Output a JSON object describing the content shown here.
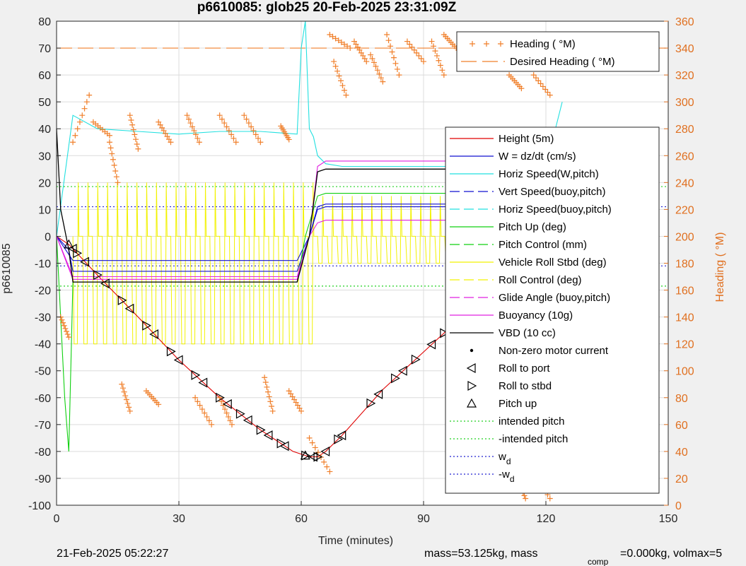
{
  "title": "p6610085: glob25 20-Feb-2025 23:31:09Z",
  "footer": {
    "timestamp": "21-Feb-2025 05:22:27",
    "mass_text": "mass=53.125kg, mass",
    "comp_sub": "comp",
    "comp_text": "=0.000kg, volmax=5"
  },
  "chart_data": {
    "type": "line",
    "title": "p6610085: glob25 20-Feb-2025 23:31:09Z",
    "xlabel": "Time (minutes)",
    "ylabel": "p6610085",
    "ylabel_right": "Heading (  °M)",
    "xlim": [
      0,
      150
    ],
    "ylim": [
      -100,
      80
    ],
    "ylim_right": [
      0,
      360
    ],
    "x_ticks": [
      0,
      30,
      60,
      90,
      120,
      150
    ],
    "y_ticks": [
      -100,
      -90,
      -80,
      -70,
      -60,
      -50,
      -40,
      -30,
      -20,
      -10,
      0,
      10,
      20,
      30,
      40,
      50,
      60,
      70,
      80
    ],
    "y_ticks_right": [
      0,
      20,
      40,
      60,
      80,
      100,
      120,
      140,
      160,
      180,
      200,
      220,
      240,
      260,
      280,
      300,
      320,
      340,
      360
    ],
    "grid": true,
    "colors": {
      "heading": "#f07f2a",
      "height": "#e00000",
      "w": "#1010d0",
      "horiz_speed": "#22e0e0",
      "pitch": "#10d010",
      "roll": "#f2f200",
      "glide": "#e020e0",
      "vbd": "#000000",
      "intended": "#20d020",
      "wd": "#2020d0"
    },
    "legend_heading": {
      "placement": "top-right",
      "entries": [
        "Heading (  °M)",
        "Desired Heading (    °M)"
      ]
    },
    "legend_main": {
      "placement": "right",
      "entries": [
        {
          "label": "Height (5m)"
        },
        {
          "label": "W = dz/dt (cm/s)"
        },
        {
          "label": "Horiz Speed(W,pitch)"
        },
        {
          "label": "Vert Speed(buoy,pitch)"
        },
        {
          "label": "Horiz Speed(buoy,pitch)"
        },
        {
          "label": "Pitch Up (deg)"
        },
        {
          "label": "Pitch Control (mm)"
        },
        {
          "label": "Vehicle Roll Stbd (deg)"
        },
        {
          "label": "Roll Control (deg)"
        },
        {
          "label": "Glide Angle (buoy,pitch)"
        },
        {
          "label": "Buoyancy (10g)"
        },
        {
          "label": "VBD (10 cc)"
        },
        {
          "label": "Non-zero motor current"
        },
        {
          "label": "Roll to port"
        },
        {
          "label": "Roll to stbd"
        },
        {
          "label": "Pitch up"
        },
        {
          "label": "intended pitch"
        },
        {
          "label": "-intended pitch"
        },
        {
          "label": "w",
          "sub": "d"
        },
        {
          "label": "-w",
          "sub": "d"
        }
      ]
    },
    "desired_heading": 340,
    "intended_pitch": [
      18.5,
      -18.5
    ],
    "w_d": [
      11,
      -11
    ],
    "series": [
      {
        "name": "Height (5m)",
        "key": "height",
        "x": [
          0,
          3,
          11,
          20,
          30,
          40,
          50,
          58,
          62,
          64,
          66,
          70,
          80,
          90,
          100,
          110,
          120,
          124
        ],
        "y": [
          0,
          -3,
          -16,
          -30,
          -46,
          -60,
          -72,
          -80,
          -82,
          -82,
          -80,
          -74,
          -57,
          -43,
          -29,
          -17,
          -4,
          0
        ]
      },
      {
        "name": "W = dz/dt (cm/s)",
        "key": "w",
        "x": [
          0,
          3,
          4,
          20,
          40,
          59,
          62,
          64,
          66,
          80,
          100,
          124
        ],
        "y": [
          0,
          -5,
          -13,
          -13,
          -13,
          -13,
          0,
          10,
          11,
          11,
          11,
          11
        ]
      },
      {
        "name": "Horiz Speed(W,pitch)",
        "key": "horiz_speed",
        "x": [
          0,
          4,
          10,
          20,
          30,
          40,
          50,
          59,
          60,
          61,
          62,
          63,
          64,
          66,
          70,
          80,
          90,
          100,
          110,
          120,
          124
        ],
        "y": [
          0,
          45,
          40,
          39,
          38,
          39,
          39,
          38,
          70,
          80,
          40,
          37,
          30,
          27,
          26,
          26,
          26,
          26,
          26,
          26,
          50
        ]
      },
      {
        "name": "Vert Speed(buoy,pitch)",
        "key": "w",
        "x": [
          0,
          4,
          20,
          40,
          59,
          62,
          64,
          66,
          80,
          100,
          124
        ],
        "y": [
          0,
          -9,
          -9,
          -9,
          -9,
          0,
          11,
          12,
          12,
          12,
          12
        ]
      },
      {
        "name": "Pitch Up (deg)",
        "key": "pitch",
        "x": [
          0,
          2,
          3,
          4,
          20,
          40,
          59,
          61,
          64,
          66,
          80,
          100,
          124
        ],
        "y": [
          0,
          -60,
          -80,
          -17,
          -17,
          -17,
          -17,
          0,
          15,
          16,
          16,
          16,
          16
        ]
      },
      {
        "name": "Glide Angle (buoy,pitch)",
        "key": "glide",
        "x": [
          0,
          4,
          20,
          40,
          59,
          62,
          64,
          66,
          80,
          100,
          124
        ],
        "y": [
          0,
          -15,
          -15,
          -15,
          -15,
          0,
          5,
          6,
          6,
          6,
          6
        ]
      },
      {
        "name": "Buoyancy (10g)",
        "key": "glide",
        "x": [
          0,
          4,
          20,
          40,
          59,
          62,
          64,
          66,
          80,
          100,
          124
        ],
        "y": [
          0,
          -16,
          -16,
          -16,
          -16,
          0,
          26,
          28,
          28,
          28,
          28
        ]
      },
      {
        "name": "VBD (10 cc)",
        "key": "vbd",
        "x": [
          0,
          1,
          3,
          4,
          20,
          40,
          59,
          62,
          64,
          66,
          80,
          100,
          124
        ],
        "y": [
          40,
          10,
          -5,
          -17,
          -17,
          -17,
          -17,
          0,
          24,
          25,
          25,
          25,
          25
        ]
      }
    ],
    "roll_series": {
      "name": "Vehicle Roll Stbd (deg)",
      "key": "roll",
      "low": -40,
      "high": 0,
      "upper_high": 15
    },
    "heading_scatter": {
      "name": "Heading (  °M)",
      "segments": [
        {
          "x0": 4,
          "x1": 8,
          "y0": 270,
          "y1": 305
        },
        {
          "x0": 9,
          "x1": 13,
          "y0": 285,
          "y1": 275
        },
        {
          "x0": 13,
          "x1": 15,
          "y0": 270,
          "y1": 240
        },
        {
          "x0": 18,
          "x1": 20,
          "y0": 290,
          "y1": 265
        },
        {
          "x0": 25,
          "x1": 28,
          "y0": 285,
          "y1": 270
        },
        {
          "x0": 32,
          "x1": 35,
          "y0": 290,
          "y1": 270
        },
        {
          "x0": 40,
          "x1": 44,
          "y0": 290,
          "y1": 270
        },
        {
          "x0": 46,
          "x1": 50,
          "y0": 290,
          "y1": 270
        },
        {
          "x0": 55,
          "x1": 57,
          "y0": 282,
          "y1": 272
        },
        {
          "x0": 1,
          "x1": 3,
          "y0": 140,
          "y1": 125
        },
        {
          "x0": 16,
          "x1": 18,
          "y0": 90,
          "y1": 70
        },
        {
          "x0": 22,
          "x1": 25,
          "y0": 85,
          "y1": 75
        },
        {
          "x0": 34,
          "x1": 38,
          "y0": 80,
          "y1": 60
        },
        {
          "x0": 40,
          "x1": 43,
          "y0": 80,
          "y1": 60
        },
        {
          "x0": 51,
          "x1": 53,
          "y0": 95,
          "y1": 70
        },
        {
          "x0": 57,
          "x1": 60,
          "y0": 85,
          "y1": 70
        },
        {
          "x0": 62,
          "x1": 67,
          "y0": 50,
          "y1": 25
        },
        {
          "x0": 67,
          "x1": 72,
          "y0": 350,
          "y1": 340
        },
        {
          "x0": 68,
          "x1": 71,
          "y0": 330,
          "y1": 305
        },
        {
          "x0": 73,
          "x1": 76,
          "y0": 345,
          "y1": 330
        },
        {
          "x0": 77,
          "x1": 80,
          "y0": 335,
          "y1": 315
        },
        {
          "x0": 81,
          "x1": 84,
          "y0": 350,
          "y1": 320
        },
        {
          "x0": 86,
          "x1": 90,
          "y0": 345,
          "y1": 330
        },
        {
          "x0": 92,
          "x1": 95,
          "y0": 345,
          "y1": 320
        },
        {
          "x0": 95,
          "x1": 98,
          "y0": 350,
          "y1": 340
        },
        {
          "x0": 102,
          "x1": 106,
          "y0": 345,
          "y1": 335
        },
        {
          "x0": 108,
          "x1": 110,
          "y0": 345,
          "y1": 335
        },
        {
          "x0": 111,
          "x1": 114,
          "y0": 320,
          "y1": 310
        },
        {
          "x0": 117,
          "x1": 121,
          "y0": 320,
          "y1": 305
        },
        {
          "x0": 113,
          "x1": 115,
          "y0": 20,
          "y1": 5
        },
        {
          "x0": 117,
          "x1": 121,
          "y0": 25,
          "y1": 5
        }
      ]
    },
    "markers": {
      "roll_to_port_x": [
        4,
        7,
        12,
        18,
        24,
        30,
        36,
        42,
        47,
        52,
        56,
        63,
        66,
        70,
        79,
        85,
        92,
        98,
        107,
        115,
        121
      ],
      "roll_to_stbd_x": [
        5,
        10,
        16,
        22,
        28,
        34,
        40,
        45,
        50,
        55,
        61,
        64,
        69,
        77,
        83,
        88,
        95,
        104,
        112,
        118,
        123
      ],
      "pitch_up_x": [
        3,
        61
      ]
    }
  }
}
